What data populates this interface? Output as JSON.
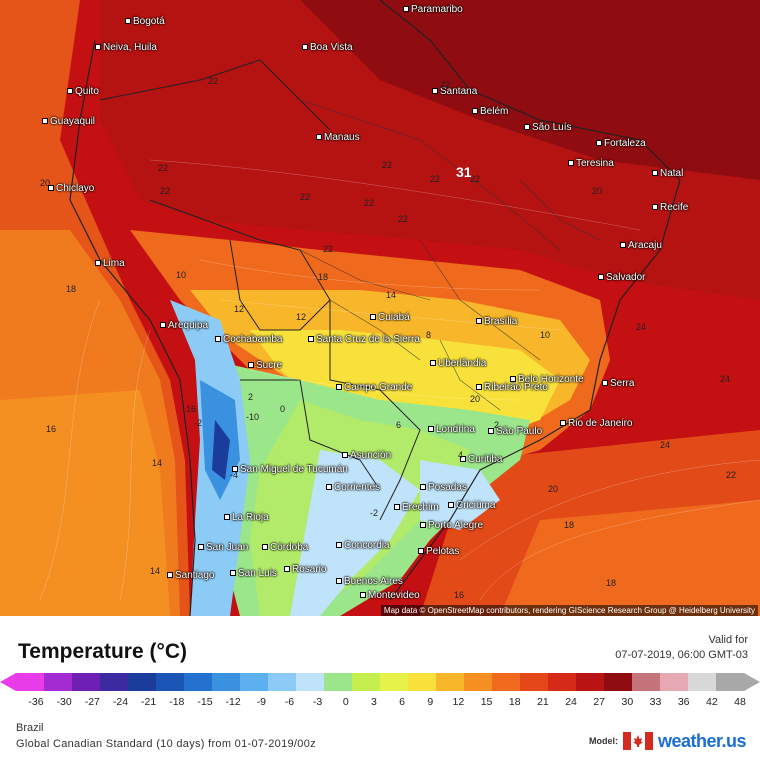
{
  "map": {
    "attribution": "Map data © OpenStreetMap contributors, rendering GIScience Research Group @ Heidelberg University",
    "cities": [
      {
        "name": "Paramaribo"
      },
      {
        "name": "Bogotá"
      },
      {
        "name": "Neiva, Huila"
      },
      {
        "name": "Boa Vista"
      },
      {
        "name": "Quito"
      },
      {
        "name": "Guayaquil"
      },
      {
        "name": "Santana"
      },
      {
        "name": "Belém"
      },
      {
        "name": "Manaus"
      },
      {
        "name": "São Luís"
      },
      {
        "name": "Fortaleza"
      },
      {
        "name": "Teresina"
      },
      {
        "name": "Natal"
      },
      {
        "name": "Chiclayo"
      },
      {
        "name": "Recife"
      },
      {
        "name": "Aracaju"
      },
      {
        "name": "Lima"
      },
      {
        "name": "Salvador"
      },
      {
        "name": "Arequipa"
      },
      {
        "name": "Cuiabá"
      },
      {
        "name": "Brasília"
      },
      {
        "name": "Cochabamba"
      },
      {
        "name": "Santa Cruz de la Sierra"
      },
      {
        "name": "Sucre"
      },
      {
        "name": "Uberlândia"
      },
      {
        "name": "Belo Horizonte"
      },
      {
        "name": "Serra"
      },
      {
        "name": "Campo Grande"
      },
      {
        "name": "Ribeirão Preto"
      },
      {
        "name": "Londrina"
      },
      {
        "name": "São Paulo"
      },
      {
        "name": "Rio de Janeiro"
      },
      {
        "name": "Asunción"
      },
      {
        "name": "San Miguel de Tucumán"
      },
      {
        "name": "Curitiba"
      },
      {
        "name": "Corrientes"
      },
      {
        "name": "Posadas"
      },
      {
        "name": "La Rioja"
      },
      {
        "name": "Erechim"
      },
      {
        "name": "Criciúma"
      },
      {
        "name": "Porto Alegre"
      },
      {
        "name": "San Juan"
      },
      {
        "name": "Córdoba"
      },
      {
        "name": "Concordia"
      },
      {
        "name": "Pelotas"
      },
      {
        "name": "Rosario"
      },
      {
        "name": "Santiago"
      },
      {
        "name": "San Luis"
      },
      {
        "name": "Buenos Aires"
      },
      {
        "name": "Montevideo"
      }
    ],
    "contour_labels": [
      "22",
      "22",
      "22",
      "22",
      "22",
      "22",
      "22",
      "22",
      "22",
      "22",
      "22",
      "31",
      "20",
      "20",
      "18",
      "18",
      "16",
      "16",
      "14",
      "14",
      "14",
      "12",
      "12",
      "10",
      "10",
      "8",
      "6",
      "4",
      "2",
      "2",
      "0",
      "-2",
      "-4",
      "-10",
      "-2",
      "24",
      "24",
      "24",
      "22",
      "20",
      "20",
      "18",
      "18",
      "16"
    ]
  },
  "legend": {
    "title": "Temperature (°C)",
    "valid_label": "Valid for",
    "valid_value": "07-07-2019, 06:00 GMT-03",
    "ticks": [
      "-36",
      "-30",
      "-27",
      "-24",
      "-21",
      "-18",
      "-15",
      "-12",
      "-9",
      "-6",
      "-3",
      "0",
      "3",
      "6",
      "9",
      "12",
      "15",
      "18",
      "21",
      "24",
      "27",
      "30",
      "33",
      "36",
      "42",
      "48"
    ],
    "tick_values": [
      -36,
      -30,
      -27,
      -24,
      -21,
      -18,
      -15,
      -12,
      -9,
      -6,
      -3,
      0,
      3,
      6,
      9,
      12,
      15,
      18,
      21,
      24,
      27,
      30,
      33,
      36,
      42,
      48
    ],
    "colors": [
      "#e83ce8",
      "#a42ad2",
      "#6e1fb4",
      "#3b2aa0",
      "#1b3c9a",
      "#1a55b5",
      "#2472d0",
      "#3a91e0",
      "#5cb0ee",
      "#8ccbf5",
      "#bfe3fa",
      "#9be68a",
      "#c5ef4e",
      "#e6f24a",
      "#f7e13a",
      "#f8b62a",
      "#f58f22",
      "#ef6a1c",
      "#e44818",
      "#d42a17",
      "#b81414",
      "#8f0d10",
      "#c4747a",
      "#e6a9b4",
      "#d8d8d8",
      "#a8a8a8"
    ]
  },
  "footer": {
    "region": "Brazil",
    "model_run": "Global Canadian Standard (10 days) from 01-07-2019/00z",
    "brand_label": "Model:",
    "brand_name": "weather.us"
  }
}
